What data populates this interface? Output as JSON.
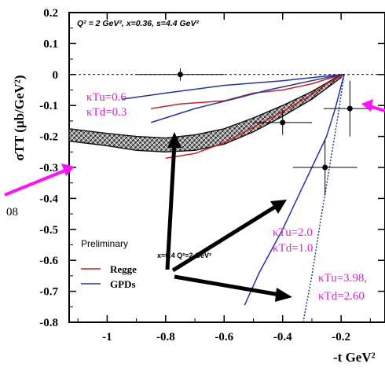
{
  "chart_data": {
    "type": "scatter",
    "header_text": "Q² = 2 GeV², x=0.36, s=4.4 GeV²",
    "ylabel": "σTT (μb/GeV²)",
    "xlabel": "-t GeV²",
    "xlim": [
      -1.13,
      -0.05
    ],
    "ylim": [
      -0.8,
      0.2
    ],
    "x_ticks": [
      -1,
      -0.8,
      -0.6,
      -0.4,
      -0.2
    ],
    "x_tick_labels": [
      "-1",
      "-0.8",
      "-0.6",
      "-0.4",
      "-0.2"
    ],
    "y_ticks": [
      0.2,
      0.1,
      0,
      -0.1,
      -0.2,
      -0.3,
      -0.4,
      -0.5,
      -0.6,
      -0.7,
      -0.8
    ],
    "y_tick_labels": [
      "0.2",
      "0.1",
      "0",
      "-0.1",
      "-0.2",
      "-0.3",
      "-0.4",
      "-0.5",
      "-0.6",
      "-0.7",
      "-0.8"
    ],
    "data_points": [
      {
        "x": -0.75,
        "y": 0.0,
        "xerr": 0.15,
        "yerr": 0.02
      },
      {
        "x": -0.4,
        "y": -0.155,
        "xerr": 0.1,
        "yerr": 0.04
      },
      {
        "x": -0.17,
        "y": -0.11,
        "xerr": 0.09,
        "yerr": 0.09
      },
      {
        "x": -0.255,
        "y": -0.3,
        "xerr": 0.11,
        "yerr": 0.09
      }
    ],
    "band": {
      "x": [
        -1.13,
        -1.0,
        -0.9,
        -0.8,
        -0.7,
        -0.6,
        -0.5,
        -0.4,
        -0.3,
        -0.2
      ],
      "upper": [
        -0.175,
        -0.19,
        -0.2,
        -0.205,
        -0.195,
        -0.175,
        -0.14,
        -0.1,
        -0.055,
        0.0
      ],
      "lower": [
        -0.215,
        -0.23,
        -0.245,
        -0.25,
        -0.245,
        -0.225,
        -0.185,
        -0.135,
        -0.08,
        -0.01
      ]
    },
    "curves": [
      {
        "series": "Regge",
        "color": "#cc2222",
        "dash": false,
        "x": [
          -0.85,
          -0.75,
          -0.6,
          -0.5,
          -0.4,
          -0.3,
          -0.25,
          -0.19
        ],
        "y": [
          -0.11,
          -0.095,
          -0.085,
          -0.06,
          -0.05,
          -0.03,
          -0.015,
          0.0
        ]
      },
      {
        "series": "Regge",
        "color": "#cc2222",
        "dash": false,
        "x": [
          -0.8,
          -0.7,
          -0.6,
          -0.5,
          -0.4,
          -0.3,
          -0.25,
          -0.19
        ],
        "y": [
          -0.27,
          -0.255,
          -0.22,
          -0.17,
          -0.12,
          -0.065,
          -0.03,
          0.0
        ]
      },
      {
        "series": "GPDs",
        "color": "#2233aa",
        "dash": false,
        "x": [
          -0.85,
          -0.7,
          -0.55,
          -0.45,
          -0.35,
          -0.25,
          -0.19
        ],
        "y": [
          -0.155,
          -0.11,
          -0.075,
          -0.05,
          -0.03,
          -0.01,
          0.0
        ]
      },
      {
        "series": "GPDs",
        "color": "#2233aa",
        "dash": false,
        "x": [
          -0.95,
          -0.8,
          -0.6,
          -0.4,
          -0.3,
          -0.25,
          -0.19
        ],
        "y": [
          -0.08,
          -0.06,
          -0.035,
          -0.02,
          -0.01,
          -0.005,
          0.0
        ]
      },
      {
        "series": "GPDs",
        "color": "#2233aa",
        "dash": false,
        "x": [
          -0.53,
          -0.48,
          -0.4,
          -0.35,
          -0.3,
          -0.25,
          -0.22,
          -0.19
        ],
        "y": [
          -0.745,
          -0.64,
          -0.5,
          -0.4,
          -0.3,
          -0.2,
          -0.11,
          0.0
        ]
      },
      {
        "series": "GPDs",
        "color": "#2233aa",
        "dash": true,
        "x": [
          -0.33,
          -0.3,
          -0.27,
          -0.24,
          -0.21,
          -0.19
        ],
        "y": [
          -0.8,
          -0.65,
          -0.47,
          -0.3,
          -0.13,
          0.0
        ]
      }
    ],
    "legend": {
      "title": "Preliminary",
      "extra": "x=0.4 Q²=2 GeV²",
      "items": [
        {
          "label": "Regge",
          "color": "#cc2222"
        },
        {
          "label": "GPDs",
          "color": "#2233aa"
        }
      ]
    },
    "annotations": [
      {
        "lines": [
          "κTu=0.6",
          "κTd=0.3"
        ]
      },
      {
        "lines": [
          "κTu=2.0",
          "κTd=1.0"
        ]
      },
      {
        "lines": [
          "κTu=3.98,",
          "κTd=2.60"
        ]
      }
    ],
    "stray_label": "08",
    "annotation_color": "#e020e0"
  }
}
